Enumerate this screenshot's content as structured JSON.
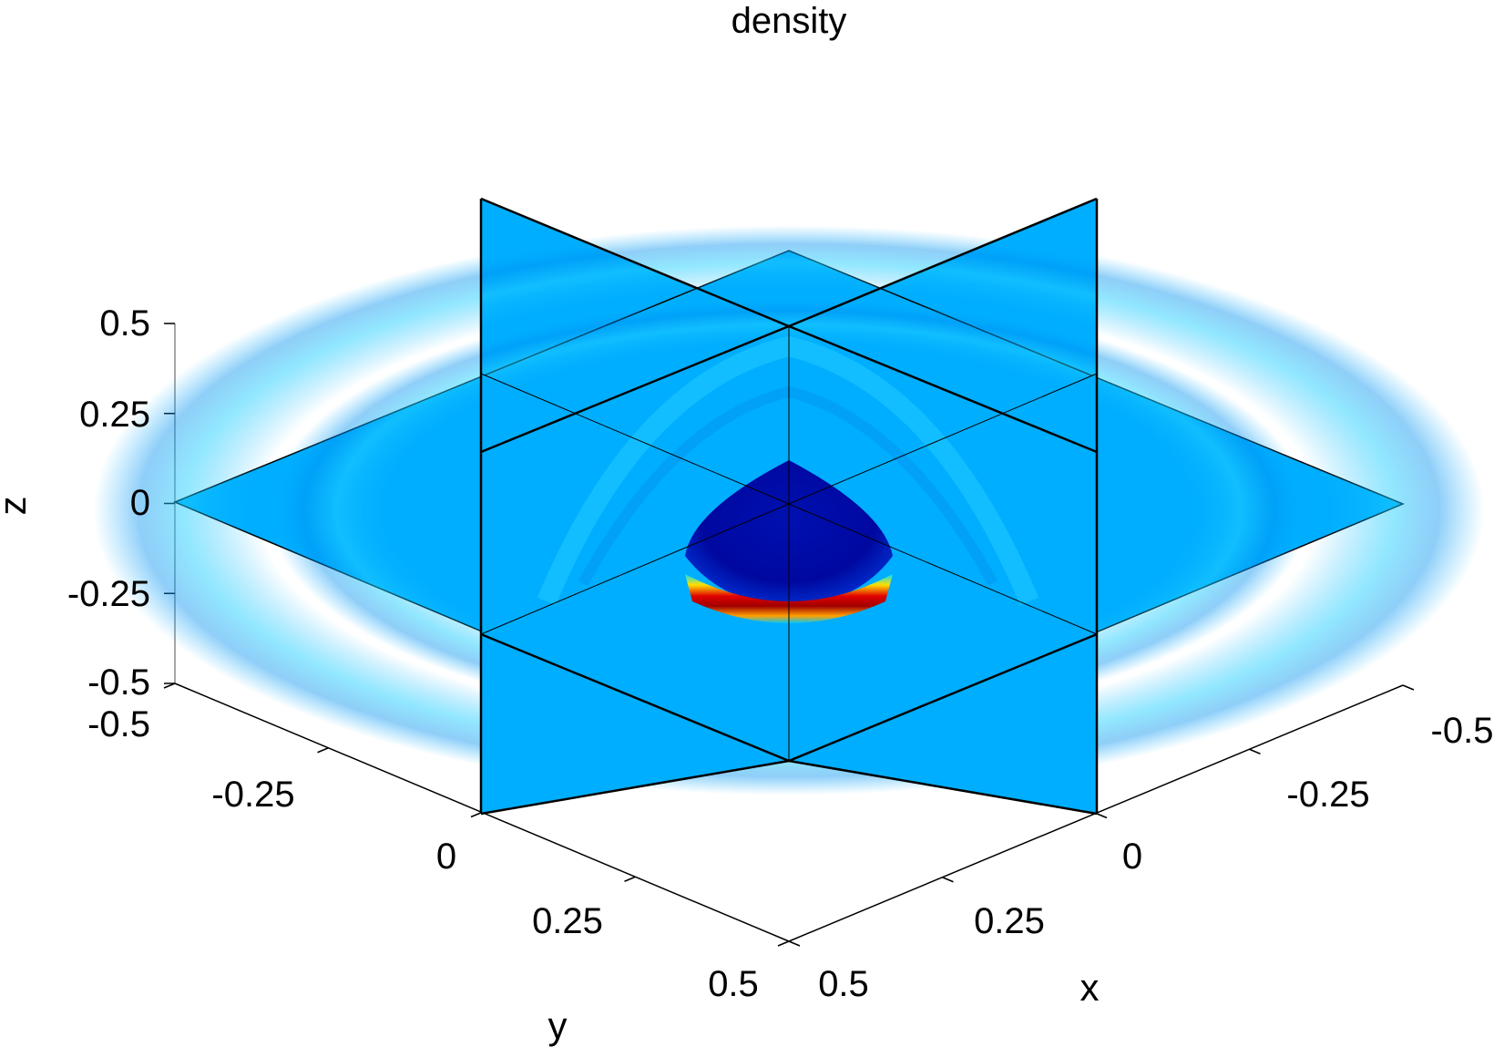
{
  "chart_data": {
    "type": "heatmap",
    "title": "density",
    "xlabel": "x",
    "ylabel": "y",
    "zlabel": "z",
    "xlim": [
      -0.5,
      0.5
    ],
    "ylim": [
      -0.5,
      0.5
    ],
    "zlim": [
      -0.5,
      0.5
    ],
    "x_ticks": [
      "-0.5",
      "-0.25",
      "0",
      "0.25",
      "0.5"
    ],
    "y_ticks": [
      "-0.5",
      "-0.25",
      "0",
      "0.25",
      "0.5"
    ],
    "z_ticks": [
      "0.5",
      "0.25",
      "0",
      "-0.25",
      "-0.5"
    ],
    "slices": [
      "x = 0",
      "y = 0",
      "z = 0"
    ],
    "colormap": "jet",
    "colors": {
      "background": "#00AEFF",
      "low": "#00008F",
      "high": "#C80000",
      "mid_high": "#FFD200",
      "ring": "#14C8FF"
    }
  }
}
